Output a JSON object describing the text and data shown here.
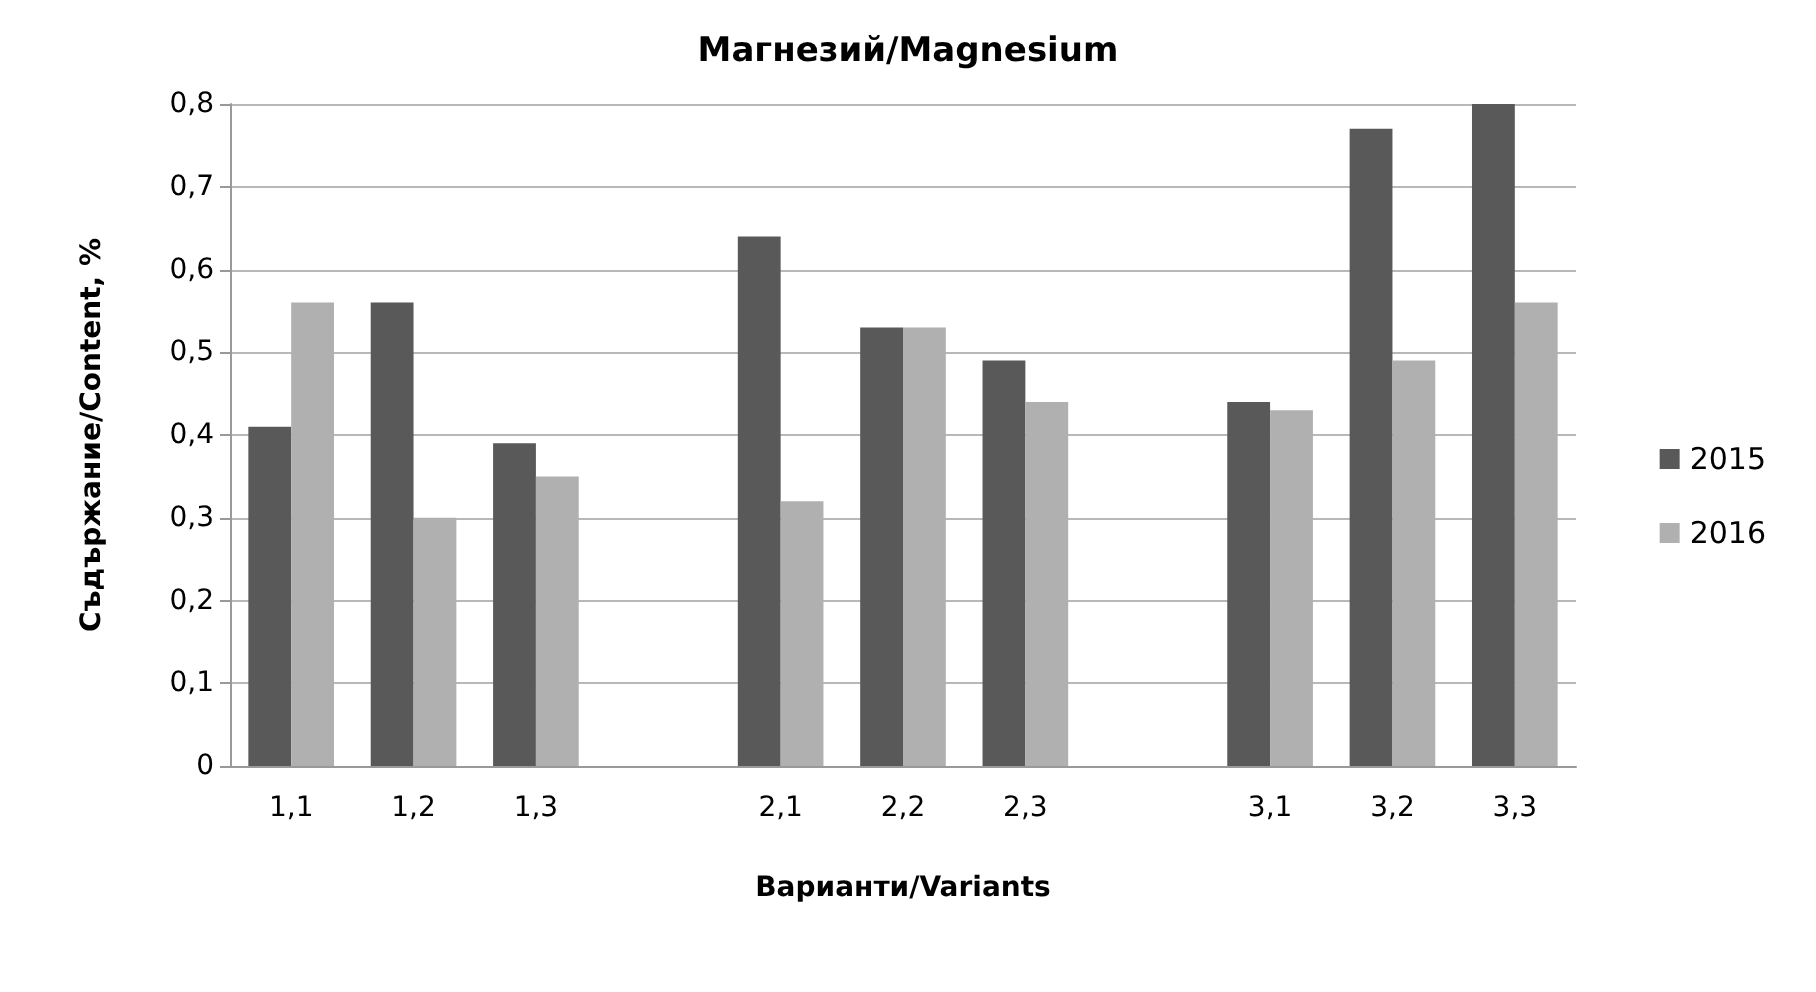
{
  "chart_data": {
    "type": "bar",
    "title": "Магнезий/Magnesium",
    "xlabel": "Варианти/Variants",
    "ylabel": "Съдържание/Content, %",
    "categories": [
      "1,1",
      "1,2",
      "1,3",
      null,
      "2,1",
      "2,2",
      "2,3",
      null,
      "3,1",
      "3,2",
      "3,3"
    ],
    "series": [
      {
        "name": "2015",
        "color": "#595959",
        "values": [
          0.41,
          0.56,
          0.39,
          null,
          0.64,
          0.53,
          0.49,
          null,
          0.44,
          0.77,
          0.8
        ]
      },
      {
        "name": "2016",
        "color": "#b0b0b0",
        "values": [
          0.56,
          0.3,
          0.35,
          null,
          0.32,
          0.53,
          0.44,
          null,
          0.43,
          0.49,
          0.56
        ]
      }
    ],
    "ylim": [
      0,
      0.8
    ],
    "yticks": [
      {
        "value": 0,
        "label": "0"
      },
      {
        "value": 0.1,
        "label": "0,1"
      },
      {
        "value": 0.2,
        "label": "0,2"
      },
      {
        "value": 0.3,
        "label": "0,3"
      },
      {
        "value": 0.4,
        "label": "0,4"
      },
      {
        "value": 0.5,
        "label": "0,5"
      },
      {
        "value": 0.6,
        "label": "0,6"
      },
      {
        "value": 0.7,
        "label": "0,7"
      },
      {
        "value": 0.8,
        "label": "0,8"
      }
    ],
    "grid": "y",
    "legend": "right"
  }
}
